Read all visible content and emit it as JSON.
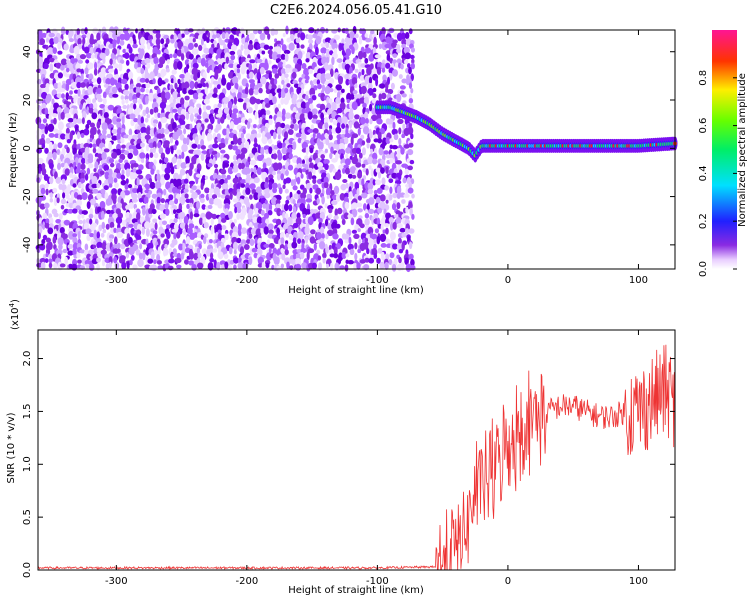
{
  "title": "C2E6.2024.056.05.41.G10",
  "chart_data": [
    {
      "type": "heatmap",
      "xlabel": "Height of straight line (km)",
      "ylabel": "Frequency (Hz)",
      "xlim": [
        -360,
        128
      ],
      "ylim": [
        -50,
        49
      ],
      "xticks": [
        -300,
        -200,
        -100,
        0,
        100
      ],
      "yticks": [
        -40,
        -20,
        0,
        20,
        40
      ],
      "grid": false,
      "noise_region_x": [
        -360,
        -72
      ],
      "ridge": {
        "x": [
          -100,
          -90,
          -80,
          -70,
          -60,
          -50,
          -40,
          -30,
          -25,
          -20,
          -10,
          0,
          20,
          40,
          60,
          80,
          100,
          128
        ],
        "y": [
          17,
          17,
          15,
          13,
          10,
          6,
          3,
          0,
          -3,
          1,
          1,
          1,
          1,
          1,
          1,
          1,
          1,
          2
        ]
      },
      "colorbar": {
        "label": "Normalized spectral amplitude",
        "range": [
          0,
          1
        ],
        "ticks": [
          0.0,
          0.2,
          0.4,
          0.6,
          0.8
        ]
      }
    },
    {
      "type": "line",
      "xlabel": "Height of straight line (km)",
      "ylabel": "SNR (10 * v/v)",
      "y_multiplier": "(x10",
      "y_multiplier_exp": "4",
      "xlim": [
        -360,
        128
      ],
      "ylim": [
        0,
        2.27
      ],
      "xticks": [
        -300,
        -200,
        -100,
        0,
        100
      ],
      "yticks": [
        0.0,
        0.5,
        1.0,
        1.5,
        2.0
      ],
      "ytick_labels": [
        "0.0",
        "0.5",
        "1.0",
        "1.5",
        "2.0"
      ],
      "grid": false,
      "series": [
        {
          "color": "#ee3333",
          "x": [
            -360,
            -100,
            -55,
            -45,
            -40,
            -35,
            -30,
            -25,
            -20,
            -15,
            -10,
            -5,
            0,
            10,
            20,
            30,
            40,
            50,
            60,
            70,
            80,
            90,
            100,
            110,
            120,
            128
          ],
          "y": [
            0.02,
            0.02,
            0.03,
            0.08,
            0.2,
            0.35,
            0.5,
            0.7,
            0.8,
            0.9,
            0.95,
            1.1,
            1.2,
            1.35,
            1.45,
            1.5,
            1.55,
            1.55,
            1.5,
            1.45,
            1.45,
            1.5,
            1.5,
            1.6,
            1.7,
            1.6
          ]
        }
      ]
    }
  ]
}
